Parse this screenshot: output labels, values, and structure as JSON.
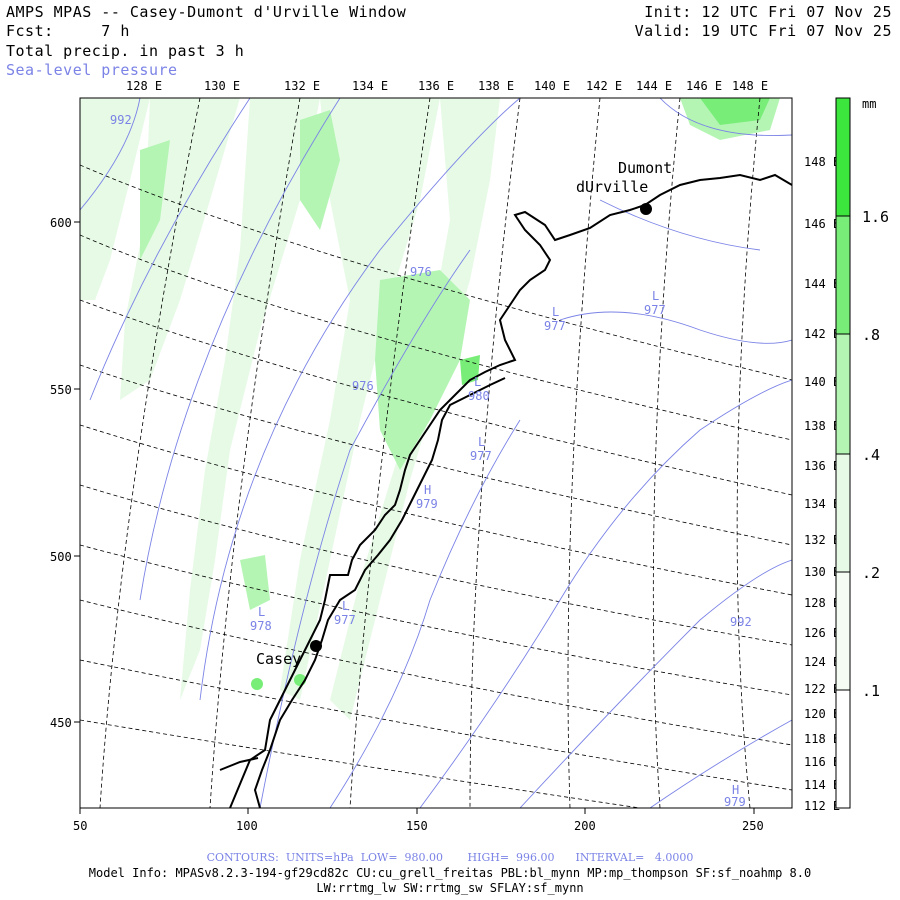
{
  "header": {
    "title": "AMPS MPAS -- Casey-Dumont d'Urville Window",
    "forecast": "Fcst:     7 h",
    "field": "Total precip. in past 3 h",
    "overlay": "Sea-level pressure",
    "init": "Init: 12 UTC Fri 07 Nov 25",
    "valid": "Valid: 19 UTC Fri 07 Nov 25"
  },
  "map": {
    "top_lon_labels": [
      "128 E",
      "130 E",
      "132 E",
      "134 E",
      "136 E",
      "138 E",
      "140 E",
      "142 E",
      "144 E",
      "146 E",
      "148 E"
    ],
    "right_lon_labels": [
      "148 E",
      "146 E",
      "144 E",
      "142 E",
      "140 E",
      "138 E",
      "136 E",
      "134 E",
      "132 E",
      "130 E",
      "128 E",
      "126 E",
      "124 E",
      "122 E",
      "120 E",
      "118 E",
      "116 E",
      "114 E",
      "112 E"
    ],
    "x_ticks": [
      "50",
      "100",
      "150",
      "200",
      "250"
    ],
    "y_ticks": [
      "600",
      "550",
      "500",
      "450"
    ],
    "stations": [
      {
        "name": "Dumont\ndUrville",
        "line1": "Dumont",
        "line2": "dUrville"
      },
      {
        "name": "Casey"
      }
    ],
    "pressure_labels": [
      {
        "text": "992"
      },
      {
        "text": "L",
        "value": "977"
      },
      {
        "text": "L",
        "value": "977"
      },
      {
        "text": "976"
      },
      {
        "text": "976"
      },
      {
        "text": "L",
        "value": "980"
      },
      {
        "text": "L",
        "value": "977"
      },
      {
        "text": "H",
        "value": "979"
      },
      {
        "text": "L",
        "value": "978"
      },
      {
        "text": "L",
        "value": "977"
      },
      {
        "text": "992"
      },
      {
        "text": "H",
        "value": "979"
      }
    ]
  },
  "colorbar": {
    "unit": "mm",
    "labels": [
      "1.6",
      ".8",
      ".4",
      ".2",
      ".1"
    ],
    "colors": [
      "#3ce63c",
      "#78ee78",
      "#b4f5b4",
      "#e6fae6",
      "#ffffff"
    ]
  },
  "footer": {
    "contours": "CONTOURS:  UNITS=hPa  LOW=  980.00       HIGH=  996.00      INTERVAL=   4.0000",
    "model_info": "Model Info: MPASv8.2.3-194-gf29cd82c CU:cu_grell_freitas PBL:bl_mynn MP:mp_thompson SF:sf_noahmp 8.0",
    "model_info2": "LW:rrtmg_lw SW:rrtmg_sw SFLAY:sf_mynn"
  }
}
